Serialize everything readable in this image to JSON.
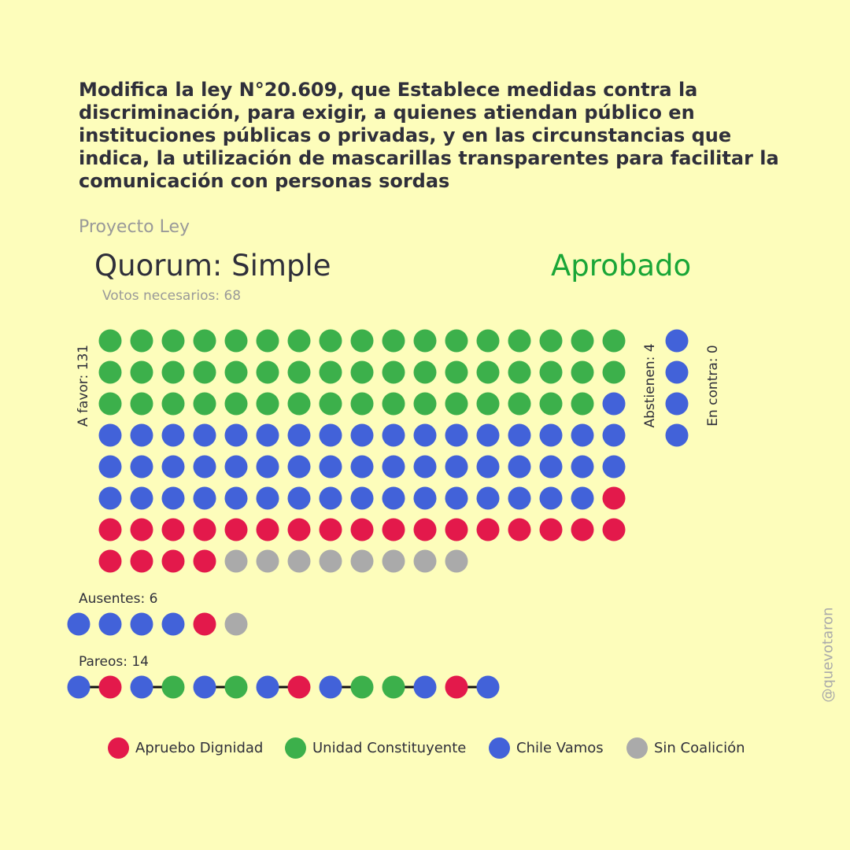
{
  "title": "Modifica la ley N°20.609, que Establece medidas contra la discriminación, para exigir, a quienes atiendan público en instituciones públicas o privadas, y en las circunstancias que indica, la utilización de mascarillas transparentes para facilitar la comunicación con personas sordas",
  "kind": "Proyecto Ley",
  "quorum": "Quorum: Simple",
  "result": "Aprobado",
  "votes_needed": "Votos necesarios: 68",
  "watermark": "@quevotaron",
  "colors": {
    "background": "#fdfdbb",
    "apruebo_dignidad": "#e3194b",
    "unidad_constituyente": "#3cb04b",
    "chile_vamos": "#4262d9",
    "sin_coalicion": "#aaaaaa",
    "approved": "#1aa637"
  },
  "chart_data": {
    "type": "waffle",
    "coalitions": [
      {
        "key": "AD",
        "name": "Apruebo Dignidad",
        "color": "#e3194b"
      },
      {
        "key": "UC",
        "name": "Unidad Constituyente",
        "color": "#3cb04b"
      },
      {
        "key": "CV",
        "name": "Chile Vamos",
        "color": "#4262d9"
      },
      {
        "key": "SC",
        "name": "Sin Coalición",
        "color": "#aaaaaa"
      }
    ],
    "a_favor": {
      "label": "A favor: 131",
      "total": 131,
      "counts": {
        "UC": 50,
        "CV": 51,
        "AD": 22,
        "SC": 8
      }
    },
    "abstienen": {
      "label": "Abstienen: 4",
      "total": 4,
      "counts": {
        "CV": 4
      }
    },
    "en_contra": {
      "label": "En contra: 0",
      "total": 0,
      "counts": {}
    },
    "ausentes": {
      "label": "Ausentes: 6",
      "total": 6,
      "sequence": [
        "CV",
        "CV",
        "CV",
        "CV",
        "AD",
        "SC"
      ]
    },
    "pareos": {
      "label": "Pareos: 14",
      "total": 14,
      "sequence": [
        "CV",
        "AD",
        "CV",
        "UC",
        "CV",
        "UC",
        "CV",
        "AD",
        "CV",
        "UC",
        "UC",
        "CV",
        "AD",
        "CV"
      ],
      "pairs": [
        [
          0,
          1
        ],
        [
          2,
          3
        ],
        [
          4,
          5
        ],
        [
          6,
          7
        ],
        [
          8,
          9
        ],
        [
          10,
          11
        ],
        [
          12,
          13
        ]
      ]
    }
  }
}
